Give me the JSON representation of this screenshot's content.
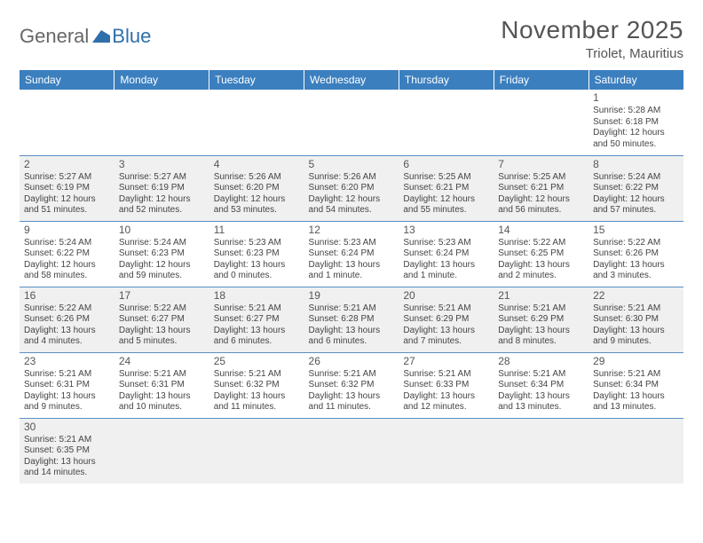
{
  "logo": {
    "text1": "General",
    "text2": "Blue"
  },
  "title": "November 2025",
  "location": "Triolet, Mauritius",
  "colors": {
    "header_bg": "#3b7fbf",
    "header_text": "#ffffff",
    "row_alt_bg": "#f0f0f0",
    "cell_border": "#5a8fc5",
    "text": "#444444",
    "title_text": "#555555",
    "logo_gray": "#676767",
    "logo_blue": "#2f6fab"
  },
  "typography": {
    "title_fontsize": 28,
    "location_fontsize": 15,
    "dayheader_fontsize": 12,
    "daynum_fontsize": 12,
    "body_fontsize": 10
  },
  "day_headers": [
    "Sunday",
    "Monday",
    "Tuesday",
    "Wednesday",
    "Thursday",
    "Friday",
    "Saturday"
  ],
  "weeks": [
    {
      "alt": false,
      "days": [
        null,
        null,
        null,
        null,
        null,
        null,
        {
          "n": "1",
          "sunrise": "Sunrise: 5:28 AM",
          "sunset": "Sunset: 6:18 PM",
          "daylight1": "Daylight: 12 hours",
          "daylight2": "and 50 minutes."
        }
      ]
    },
    {
      "alt": true,
      "days": [
        {
          "n": "2",
          "sunrise": "Sunrise: 5:27 AM",
          "sunset": "Sunset: 6:19 PM",
          "daylight1": "Daylight: 12 hours",
          "daylight2": "and 51 minutes."
        },
        {
          "n": "3",
          "sunrise": "Sunrise: 5:27 AM",
          "sunset": "Sunset: 6:19 PM",
          "daylight1": "Daylight: 12 hours",
          "daylight2": "and 52 minutes."
        },
        {
          "n": "4",
          "sunrise": "Sunrise: 5:26 AM",
          "sunset": "Sunset: 6:20 PM",
          "daylight1": "Daylight: 12 hours",
          "daylight2": "and 53 minutes."
        },
        {
          "n": "5",
          "sunrise": "Sunrise: 5:26 AM",
          "sunset": "Sunset: 6:20 PM",
          "daylight1": "Daylight: 12 hours",
          "daylight2": "and 54 minutes."
        },
        {
          "n": "6",
          "sunrise": "Sunrise: 5:25 AM",
          "sunset": "Sunset: 6:21 PM",
          "daylight1": "Daylight: 12 hours",
          "daylight2": "and 55 minutes."
        },
        {
          "n": "7",
          "sunrise": "Sunrise: 5:25 AM",
          "sunset": "Sunset: 6:21 PM",
          "daylight1": "Daylight: 12 hours",
          "daylight2": "and 56 minutes."
        },
        {
          "n": "8",
          "sunrise": "Sunrise: 5:24 AM",
          "sunset": "Sunset: 6:22 PM",
          "daylight1": "Daylight: 12 hours",
          "daylight2": "and 57 minutes."
        }
      ]
    },
    {
      "alt": false,
      "days": [
        {
          "n": "9",
          "sunrise": "Sunrise: 5:24 AM",
          "sunset": "Sunset: 6:22 PM",
          "daylight1": "Daylight: 12 hours",
          "daylight2": "and 58 minutes."
        },
        {
          "n": "10",
          "sunrise": "Sunrise: 5:24 AM",
          "sunset": "Sunset: 6:23 PM",
          "daylight1": "Daylight: 12 hours",
          "daylight2": "and 59 minutes."
        },
        {
          "n": "11",
          "sunrise": "Sunrise: 5:23 AM",
          "sunset": "Sunset: 6:23 PM",
          "daylight1": "Daylight: 13 hours",
          "daylight2": "and 0 minutes."
        },
        {
          "n": "12",
          "sunrise": "Sunrise: 5:23 AM",
          "sunset": "Sunset: 6:24 PM",
          "daylight1": "Daylight: 13 hours",
          "daylight2": "and 1 minute."
        },
        {
          "n": "13",
          "sunrise": "Sunrise: 5:23 AM",
          "sunset": "Sunset: 6:24 PM",
          "daylight1": "Daylight: 13 hours",
          "daylight2": "and 1 minute."
        },
        {
          "n": "14",
          "sunrise": "Sunrise: 5:22 AM",
          "sunset": "Sunset: 6:25 PM",
          "daylight1": "Daylight: 13 hours",
          "daylight2": "and 2 minutes."
        },
        {
          "n": "15",
          "sunrise": "Sunrise: 5:22 AM",
          "sunset": "Sunset: 6:26 PM",
          "daylight1": "Daylight: 13 hours",
          "daylight2": "and 3 minutes."
        }
      ]
    },
    {
      "alt": true,
      "days": [
        {
          "n": "16",
          "sunrise": "Sunrise: 5:22 AM",
          "sunset": "Sunset: 6:26 PM",
          "daylight1": "Daylight: 13 hours",
          "daylight2": "and 4 minutes."
        },
        {
          "n": "17",
          "sunrise": "Sunrise: 5:22 AM",
          "sunset": "Sunset: 6:27 PM",
          "daylight1": "Daylight: 13 hours",
          "daylight2": "and 5 minutes."
        },
        {
          "n": "18",
          "sunrise": "Sunrise: 5:21 AM",
          "sunset": "Sunset: 6:27 PM",
          "daylight1": "Daylight: 13 hours",
          "daylight2": "and 6 minutes."
        },
        {
          "n": "19",
          "sunrise": "Sunrise: 5:21 AM",
          "sunset": "Sunset: 6:28 PM",
          "daylight1": "Daylight: 13 hours",
          "daylight2": "and 6 minutes."
        },
        {
          "n": "20",
          "sunrise": "Sunrise: 5:21 AM",
          "sunset": "Sunset: 6:29 PM",
          "daylight1": "Daylight: 13 hours",
          "daylight2": "and 7 minutes."
        },
        {
          "n": "21",
          "sunrise": "Sunrise: 5:21 AM",
          "sunset": "Sunset: 6:29 PM",
          "daylight1": "Daylight: 13 hours",
          "daylight2": "and 8 minutes."
        },
        {
          "n": "22",
          "sunrise": "Sunrise: 5:21 AM",
          "sunset": "Sunset: 6:30 PM",
          "daylight1": "Daylight: 13 hours",
          "daylight2": "and 9 minutes."
        }
      ]
    },
    {
      "alt": false,
      "days": [
        {
          "n": "23",
          "sunrise": "Sunrise: 5:21 AM",
          "sunset": "Sunset: 6:31 PM",
          "daylight1": "Daylight: 13 hours",
          "daylight2": "and 9 minutes."
        },
        {
          "n": "24",
          "sunrise": "Sunrise: 5:21 AM",
          "sunset": "Sunset: 6:31 PM",
          "daylight1": "Daylight: 13 hours",
          "daylight2": "and 10 minutes."
        },
        {
          "n": "25",
          "sunrise": "Sunrise: 5:21 AM",
          "sunset": "Sunset: 6:32 PM",
          "daylight1": "Daylight: 13 hours",
          "daylight2": "and 11 minutes."
        },
        {
          "n": "26",
          "sunrise": "Sunrise: 5:21 AM",
          "sunset": "Sunset: 6:32 PM",
          "daylight1": "Daylight: 13 hours",
          "daylight2": "and 11 minutes."
        },
        {
          "n": "27",
          "sunrise": "Sunrise: 5:21 AM",
          "sunset": "Sunset: 6:33 PM",
          "daylight1": "Daylight: 13 hours",
          "daylight2": "and 12 minutes."
        },
        {
          "n": "28",
          "sunrise": "Sunrise: 5:21 AM",
          "sunset": "Sunset: 6:34 PM",
          "daylight1": "Daylight: 13 hours",
          "daylight2": "and 13 minutes."
        },
        {
          "n": "29",
          "sunrise": "Sunrise: 5:21 AM",
          "sunset": "Sunset: 6:34 PM",
          "daylight1": "Daylight: 13 hours",
          "daylight2": "and 13 minutes."
        }
      ]
    },
    {
      "alt": true,
      "days": [
        {
          "n": "30",
          "sunrise": "Sunrise: 5:21 AM",
          "sunset": "Sunset: 6:35 PM",
          "daylight1": "Daylight: 13 hours",
          "daylight2": "and 14 minutes."
        },
        null,
        null,
        null,
        null,
        null,
        null
      ]
    }
  ]
}
